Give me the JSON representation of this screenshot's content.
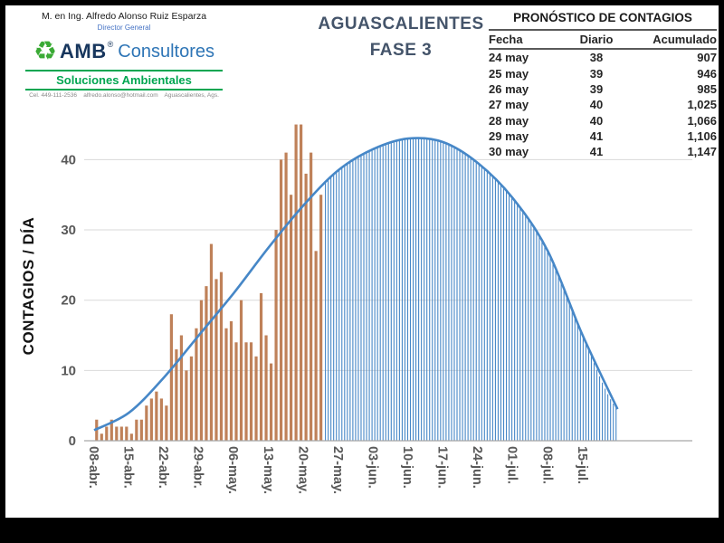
{
  "colors": {
    "bar": "#bf8159",
    "curve": "#4687c7",
    "grid": "#d9d9d9",
    "axis_text": "#595959",
    "title": "#44546a",
    "green": "#00a651",
    "navy": "#17365d",
    "blue": "#2e75b6"
  },
  "header": {
    "author": "M. en Ing. Alfredo Alonso Ruiz Esparza",
    "role": "Director General",
    "logo_amb": "AMB",
    "logo_reg": "®",
    "logo_consultores": "Consultores",
    "tagline": "Soluciones Ambientales",
    "contact": "Cel. 449-111-2536    alfredo.alonso@hotmail.com    Aguascalientes, Ags.",
    "title_line1": "AGUASCALIENTES",
    "title_line2": "FASE 3"
  },
  "forecast": {
    "title": "PRONÓSTICO DE CONTAGIOS",
    "columns": [
      "Fecha",
      "Diario",
      "Acumulado"
    ],
    "rows": [
      [
        "24 may",
        "38",
        "907"
      ],
      [
        "25 may",
        "39",
        "946"
      ],
      [
        "26 may",
        "39",
        "985"
      ],
      [
        "27 may",
        "40",
        "1,025"
      ],
      [
        "28 may",
        "40",
        "1,066"
      ],
      [
        "29 may",
        "41",
        "1,106"
      ],
      [
        "30 may",
        "41",
        "1,147"
      ]
    ]
  },
  "chart_data": {
    "type": "bar+line",
    "ylabel": "CONTAGIOS / DÍA",
    "xlabel": "",
    "ylim": [
      0,
      45.2
    ],
    "yticks": [
      0,
      10,
      20,
      30,
      40
    ],
    "grid": "horizontal",
    "legend": "none",
    "x_domain_days": [
      -2,
      120
    ],
    "x_tick_days": [
      0,
      7,
      14,
      21,
      28,
      35,
      42,
      49,
      56,
      63,
      70,
      77,
      84,
      91,
      98
    ],
    "x_tick_labels": [
      "08-abr.",
      "15-abr.",
      "22-abr.",
      "29-abr.",
      "06-may.",
      "13-may.",
      "20-may.",
      "27-may.",
      "03-jun.",
      "10-jun.",
      "17-jun.",
      "24-jun.",
      "01-jul.",
      "08-jul.",
      "15-jul."
    ],
    "bars": {
      "start_day": 0,
      "values": [
        3,
        1,
        2,
        3,
        2,
        2,
        2,
        1,
        3,
        3,
        5,
        6,
        7,
        6,
        5,
        18,
        13,
        15,
        10,
        12,
        16,
        20,
        22,
        28,
        23,
        24,
        16,
        17,
        14,
        20,
        14,
        14,
        12,
        21,
        15,
        11,
        30,
        40,
        41,
        35,
        45,
        45,
        38,
        41,
        27,
        35
      ]
    },
    "curve": {
      "points": [
        [
          0,
          1.5
        ],
        [
          7,
          4
        ],
        [
          14,
          9
        ],
        [
          21,
          15
        ],
        [
          28,
          21
        ],
        [
          35,
          27.5
        ],
        [
          42,
          33.5
        ],
        [
          49,
          38.5
        ],
        [
          56,
          41.5
        ],
        [
          63,
          43
        ],
        [
          70,
          42.5
        ],
        [
          77,
          39.5
        ],
        [
          84,
          34.5
        ],
        [
          91,
          27
        ],
        [
          98,
          15
        ],
        [
          105,
          4.5
        ]
      ]
    },
    "forecast_hatch": {
      "start_day": 46.4,
      "end_day": 104.8,
      "step_days": 0.55
    }
  }
}
